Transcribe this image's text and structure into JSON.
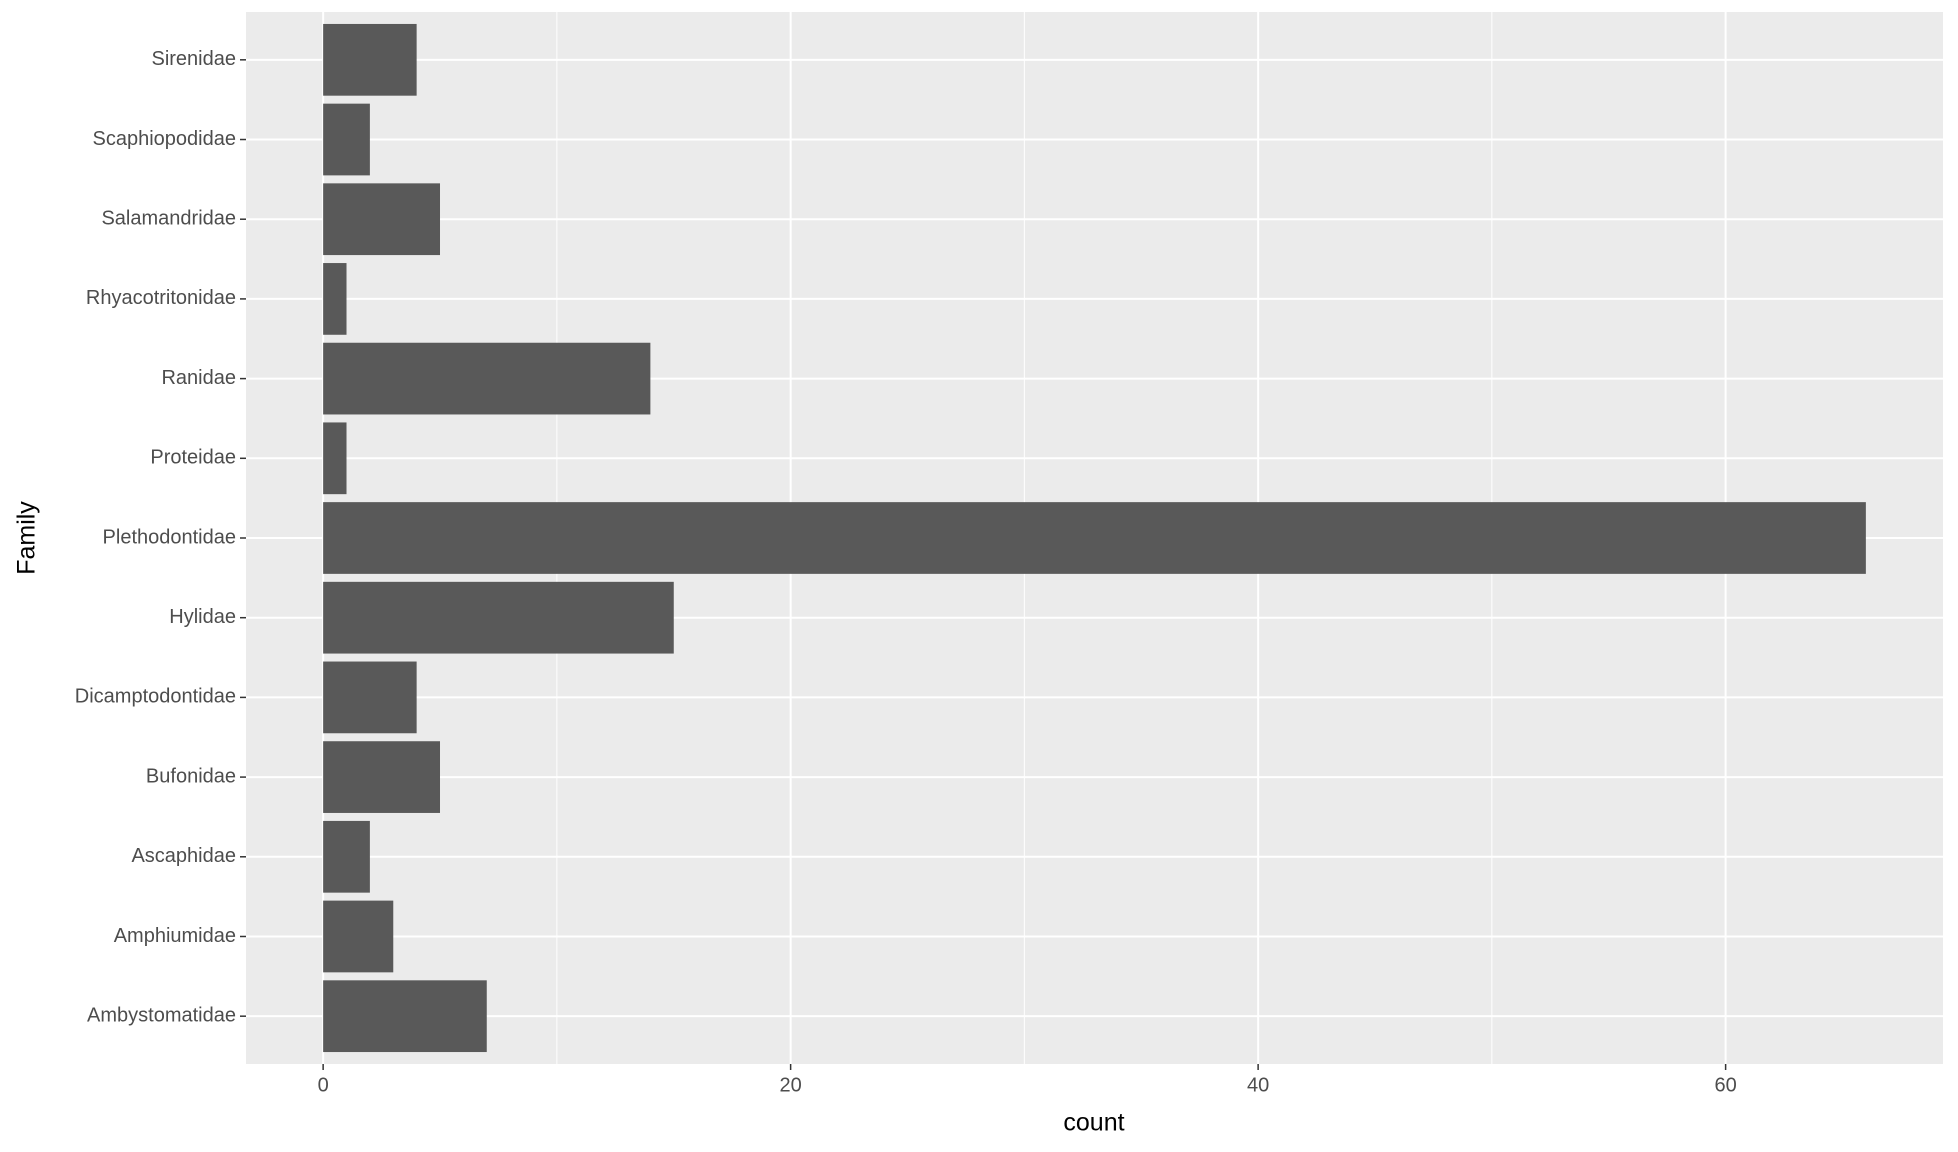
{
  "chart_data": {
    "type": "bar",
    "orientation": "horizontal",
    "x_label": "count",
    "y_label": "Family",
    "categories": [
      "Ambystomatidae",
      "Amphiumidae",
      "Ascaphidae",
      "Bufonidae",
      "Dicamptodontidae",
      "Hylidae",
      "Plethodontidae",
      "Proteidae",
      "Ranidae",
      "Rhyacotritonidae",
      "Salamandridae",
      "Scaphiopodidae",
      "Sirenidae"
    ],
    "values": [
      7,
      3,
      2,
      5,
      4,
      15,
      66,
      1,
      14,
      1,
      5,
      2,
      4
    ],
    "color": "#595959",
    "xlim": [
      -3.3,
      69.3
    ],
    "xticks": [
      0,
      20,
      40,
      60
    ],
    "x_minor_ticks": [
      10,
      30,
      50
    ],
    "grid": true,
    "panel_color": "#ebebeb"
  }
}
